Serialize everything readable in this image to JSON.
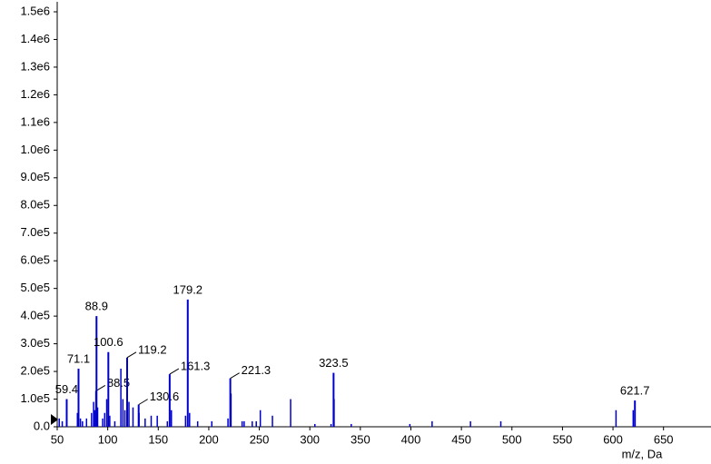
{
  "chart_data": {
    "type": "spectrum",
    "x_label": "m/z, Da",
    "x": [
      59.4,
      71.1,
      88.5,
      88.9,
      100.6,
      119.2,
      130.6,
      161.3,
      179.2,
      221.3,
      323.5,
      621.7
    ],
    "values": [
      100000,
      210000,
      130000,
      400000,
      270000,
      250000,
      80000,
      190000,
      460000,
      175000,
      195000,
      95000
    ],
    "minor_x": [
      52,
      55,
      70,
      73,
      75,
      79,
      84,
      86,
      87,
      90,
      95,
      97,
      99,
      102,
      107,
      113,
      115,
      117,
      121,
      125,
      131,
      137,
      143,
      149,
      159,
      163,
      177,
      181,
      189,
      203,
      219,
      222,
      233,
      235,
      243,
      247,
      251,
      263,
      281,
      305,
      321,
      324,
      341,
      399,
      421,
      459,
      489,
      603,
      620
    ],
    "minor_values": [
      30000,
      20000,
      50000,
      30000,
      20000,
      30000,
      50000,
      90000,
      60000,
      70000,
      30000,
      50000,
      100000,
      40000,
      20000,
      210000,
      100000,
      60000,
      90000,
      70000,
      50000,
      30000,
      40000,
      40000,
      20000,
      60000,
      40000,
      50000,
      20000,
      20000,
      30000,
      120000,
      20000,
      20000,
      20000,
      20000,
      60000,
      40000,
      100000,
      10000,
      10000,
      100000,
      10000,
      10000,
      20000,
      20000,
      20000,
      60000,
      60000
    ],
    "color": "#0000cc",
    "xlim": [
      50,
      697
    ],
    "xticks": [
      50,
      100,
      150,
      200,
      250,
      300,
      350,
      400,
      450,
      500,
      550,
      600,
      650
    ],
    "ylim": [
      0,
      1500000
    ],
    "yticks": [
      {
        "value": 0,
        "label": "0.0"
      },
      {
        "value": 100000,
        "label": "1.0e5"
      },
      {
        "value": 200000,
        "label": "2.0e5"
      },
      {
        "value": 300000,
        "label": "3.0e5"
      },
      {
        "value": 400000,
        "label": "4.0e5"
      },
      {
        "value": 500000,
        "label": "5.0e5"
      },
      {
        "value": 600000,
        "label": "6.0e5"
      },
      {
        "value": 700000,
        "label": "7.0e5"
      },
      {
        "value": 800000,
        "label": "8.0e5"
      },
      {
        "value": 900000,
        "label": "9.0e5"
      },
      {
        "value": 1000000,
        "label": "1.0e6"
      },
      {
        "value": 1100000,
        "label": "1.1e6"
      },
      {
        "value": 1200000,
        "label": "1.2e6"
      },
      {
        "value": 1300000,
        "label": "1.3e6"
      },
      {
        "value": 1400000,
        "label": "1.4e6"
      },
      {
        "value": 1500000,
        "label": "1.5e6"
      }
    ]
  }
}
